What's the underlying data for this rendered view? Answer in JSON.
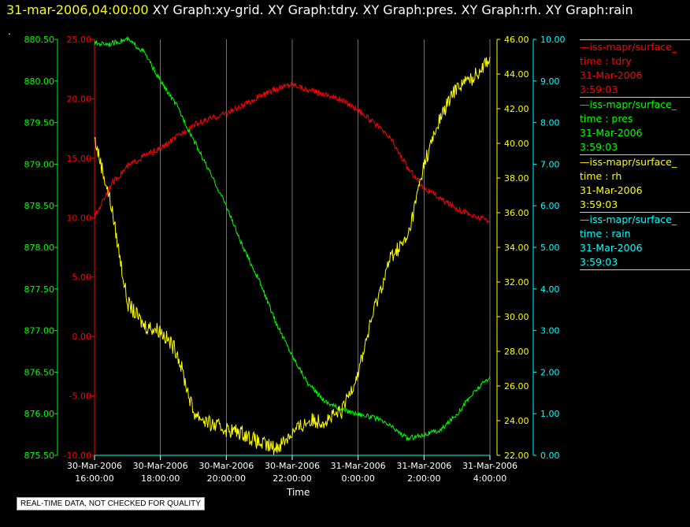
{
  "header": {
    "timestamp": "31-mar-2006,04:00:00",
    "graphs": " XY Graph:xy-grid.  XY Graph:tdry.  XY Graph:pres.  XY Graph:rh.  XY Graph:rain",
    "dot": "."
  },
  "notice": "REAL-TIME DATA, NOT CHECKED FOR QUALITY",
  "legend": [
    {
      "line": "—iss-mapr/surface_",
      "kind": "time : tdry",
      "date": "31-Mar-2006",
      "time": "3:59:03",
      "color": "#ff0000"
    },
    {
      "line": "—iss-mapr/surface_",
      "kind": "time : pres",
      "date": "31-Mar-2006",
      "time": "3:59:03",
      "color": "#00ff00"
    },
    {
      "line": "—iss-mapr/surface_",
      "kind": "time : rh",
      "date": "31-Mar-2006",
      "time": "3:59:03",
      "color": "#ffff00"
    },
    {
      "line": "—iss-mapr/surface_",
      "kind": "time : rain",
      "date": "31-Mar-2006",
      "time": "3:59:03",
      "color": "#00ffff"
    }
  ],
  "chart_data": {
    "type": "line",
    "xlabel": "Time",
    "x_ticks": [
      [
        "30-Mar-2006",
        "16:00:00"
      ],
      [
        "30-Mar-2006",
        "18:00:00"
      ],
      [
        "30-Mar-2006",
        "20:00:00"
      ],
      [
        "30-Mar-2006",
        "22:00:00"
      ],
      [
        "31-Mar-2006",
        "0:00:00"
      ],
      [
        "31-Mar-2006",
        "2:00:00"
      ],
      [
        "31-Mar-2006",
        "4:00:00"
      ]
    ],
    "x_range": [
      "30-Mar-2006 16:00:00",
      "31-Mar-2006 04:00:00"
    ],
    "x_hours": [
      16,
      17,
      18,
      19,
      20,
      21,
      22,
      23,
      24,
      25,
      26,
      27,
      28
    ],
    "grid": "vertical",
    "axes": {
      "tdry": {
        "ylim": [
          -10,
          25
        ],
        "ticks": [
          "-10.00",
          "-5.00",
          "0.00",
          "5.00",
          "10.00",
          "15.00",
          "20.00",
          "25.00"
        ],
        "color": "#ff0000"
      },
      "pres": {
        "ylim": [
          875.5,
          880.5
        ],
        "ticks": [
          "875.50",
          "876.00",
          "876.50",
          "877.00",
          "877.50",
          "878.00",
          "878.50",
          "879.00",
          "879.50",
          "880.00",
          "880.50"
        ],
        "color": "#00ff00"
      },
      "rh": {
        "ylim": [
          22,
          46
        ],
        "ticks": [
          "22.00",
          "24.00",
          "26.00",
          "28.00",
          "30.00",
          "32.00",
          "34.00",
          "36.00",
          "38.00",
          "40.00",
          "42.00",
          "44.00",
          "46.00"
        ],
        "color": "#ffff00"
      },
      "rain": {
        "ylim": [
          0,
          10
        ],
        "ticks": [
          "0.00",
          "1.00",
          "2.00",
          "3.00",
          "4.00",
          "5.00",
          "6.00",
          "7.00",
          "8.00",
          "9.00",
          "10.00"
        ],
        "color": "#00ffff"
      }
    },
    "series": [
      {
        "name": "tdry",
        "color": "#ff0000",
        "x": [
          16,
          16.5,
          17,
          17.5,
          18,
          18.5,
          19,
          19.5,
          20,
          20.5,
          21,
          21.5,
          22,
          22.5,
          23,
          23.5,
          24,
          24.5,
          25,
          25.5,
          26,
          26.5,
          27,
          27.5,
          28
        ],
        "y": [
          10.0,
          12.8,
          14.3,
          15.2,
          15.8,
          16.8,
          17.8,
          18.3,
          18.8,
          19.4,
          20.2,
          20.8,
          21.3,
          20.7,
          20.4,
          19.9,
          19.1,
          17.9,
          16.6,
          14.2,
          12.5,
          11.6,
          10.8,
          10.1,
          9.8
        ]
      },
      {
        "name": "pres",
        "color": "#00ff00",
        "x": [
          16,
          16.5,
          17,
          17.5,
          18,
          18.5,
          19,
          19.5,
          20,
          20.5,
          21,
          21.5,
          22,
          22.5,
          23,
          23.5,
          24,
          24.5,
          25,
          25.5,
          26,
          26.5,
          27,
          27.5,
          28
        ],
        "y": [
          880.45,
          880.45,
          880.5,
          880.35,
          880.0,
          879.7,
          879.3,
          878.9,
          878.5,
          878.0,
          877.6,
          877.1,
          876.7,
          876.35,
          876.15,
          876.05,
          876.0,
          875.95,
          875.85,
          875.7,
          875.75,
          875.8,
          876.0,
          876.25,
          876.45
        ]
      },
      {
        "name": "rh",
        "color": "#ffff00",
        "x": [
          16,
          16.5,
          17,
          17.5,
          18,
          18.5,
          19,
          19.5,
          20,
          20.5,
          21,
          21.5,
          22,
          22.5,
          23,
          23.5,
          24,
          24.5,
          25,
          25.5,
          26,
          26.5,
          27,
          27.5,
          28
        ],
        "y": [
          40.3,
          36.5,
          30.8,
          29.5,
          29.2,
          28.0,
          24.5,
          23.8,
          23.5,
          23.3,
          22.7,
          22.4,
          23.3,
          24.0,
          24.0,
          24.5,
          26.8,
          30.5,
          33.5,
          34.5,
          38.8,
          41.5,
          43.3,
          43.8,
          45.0
        ]
      },
      {
        "name": "rain",
        "color": "#00ffff",
        "x": [
          16,
          28
        ],
        "y": [
          0,
          0
        ]
      }
    ]
  }
}
